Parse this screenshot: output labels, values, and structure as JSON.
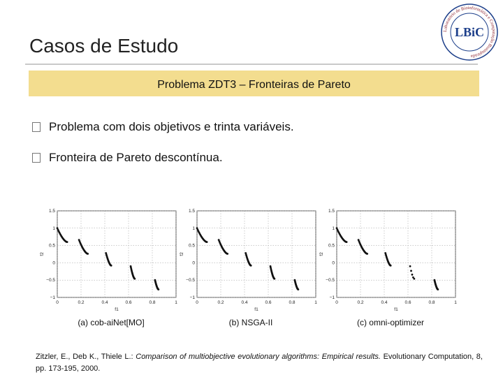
{
  "slide": {
    "title": "Casos de Estudo",
    "banner": "Problema ZDT3 – Fronteiras de Pareto",
    "bullets": [
      "Problema com dois objetivos e trinta variáveis.",
      "Fronteira de Pareto descontínua."
    ],
    "logo": {
      "text": "LBiC",
      "ring_text": "Laboratório de Bioinformática e Computação Bioinspirada"
    },
    "citation": {
      "authors": "Zitzler, E., Deb K., Thiele L.: ",
      "work": "Comparison of multiobjective evolutionary algorithms: Empirical results.",
      "source": " Evolutionary Computation, 8, pp. 173-195, 2000."
    }
  },
  "chart_data": [
    {
      "type": "scatter",
      "caption": "(a) cob-aiNet[MO]",
      "xlabel": "f1",
      "ylabel": "f2",
      "xlim": [
        0,
        1
      ],
      "ylim": [
        -1,
        1.5
      ],
      "xticks": [
        "0",
        "0.2",
        "0.4",
        "0.6",
        "0.8",
        "1"
      ],
      "yticks": [
        "1.5",
        "1",
        "0.5",
        "0",
        "−0.5",
        "−1"
      ],
      "grid": true,
      "segments": [
        {
          "x": [
            0.0,
            0.083
          ],
          "y": [
            1.0,
            0.6
          ]
        },
        {
          "x": [
            0.183,
            0.257
          ],
          "y": [
            0.66,
            0.26
          ]
        },
        {
          "x": [
            0.41,
            0.454
          ],
          "y": [
            0.28,
            -0.08
          ]
        },
        {
          "x": [
            0.618,
            0.652
          ],
          "y": [
            -0.1,
            -0.46
          ]
        },
        {
          "x": [
            0.823,
            0.852
          ],
          "y": [
            -0.5,
            -0.77
          ]
        }
      ]
    },
    {
      "type": "scatter",
      "caption": "(b) NSGA-II",
      "xlabel": "f1",
      "ylabel": "f2",
      "xlim": [
        0,
        1
      ],
      "ylim": [
        -1,
        1.5
      ],
      "xticks": [
        "0",
        "0.2",
        "0.4",
        "0.6",
        "0.8",
        "1"
      ],
      "yticks": [
        "1.5",
        "1",
        "0.5",
        "0",
        "−0.5",
        "−1"
      ],
      "grid": true,
      "segments": [
        {
          "x": [
            0.0,
            0.083
          ],
          "y": [
            1.0,
            0.6
          ]
        },
        {
          "x": [
            0.183,
            0.257
          ],
          "y": [
            0.66,
            0.26
          ]
        },
        {
          "x": [
            0.41,
            0.454
          ],
          "y": [
            0.28,
            -0.08
          ]
        },
        {
          "x": [
            0.618,
            0.652
          ],
          "y": [
            -0.1,
            -0.46
          ]
        },
        {
          "x": [
            0.823,
            0.852
          ],
          "y": [
            -0.5,
            -0.77
          ]
        }
      ]
    },
    {
      "type": "scatter",
      "caption": "(c) omni-optimizer",
      "xlabel": "f1",
      "ylabel": "f2",
      "xlim": [
        0,
        1
      ],
      "ylim": [
        -1,
        1.5
      ],
      "xticks": [
        "0",
        "0.2",
        "0.4",
        "0.6",
        "0.8",
        "1"
      ],
      "yticks": [
        "1.5",
        "1",
        "0.5",
        "0",
        "−0.5",
        "−1"
      ],
      "grid": true,
      "segments": [
        {
          "x": [
            0.0,
            0.083
          ],
          "y": [
            1.0,
            0.6
          ]
        },
        {
          "x": [
            0.183,
            0.257
          ],
          "y": [
            0.66,
            0.26
          ]
        },
        {
          "x": [
            0.41,
            0.454
          ],
          "y": [
            0.28,
            -0.08
          ]
        },
        {
          "x": [
            0.618,
            0.652
          ],
          "y": [
            -0.1,
            -0.46
          ],
          "sparse": true
        },
        {
          "x": [
            0.823,
            0.852
          ],
          "y": [
            -0.5,
            -0.77
          ]
        }
      ]
    }
  ]
}
